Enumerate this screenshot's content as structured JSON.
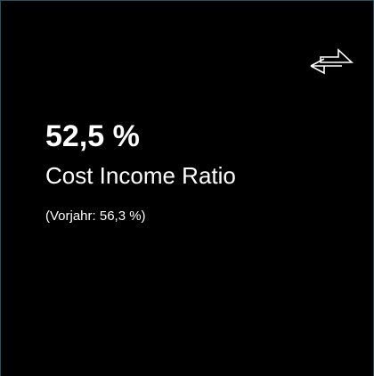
{
  "kpi": {
    "value": "52,5 %",
    "label": "Cost Income Ratio",
    "previous": "(Vorjahr: 56,3 %)"
  }
}
